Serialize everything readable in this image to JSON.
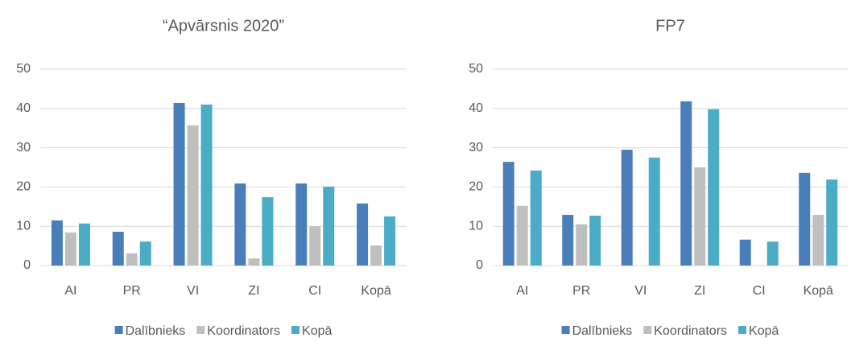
{
  "chart_data": [
    {
      "type": "bar",
      "title": "“Apvārsnis 2020”",
      "categories": [
        "AI",
        "PR",
        "VI",
        "ZI",
        "CI",
        "Kopā"
      ],
      "series": [
        {
          "name": "Dalībnieks",
          "color": "#4a7ebb",
          "values": [
            11.5,
            8.6,
            41.4,
            20.9,
            20.9,
            15.8
          ]
        },
        {
          "name": "Koordinators",
          "color": "#bfbfbf",
          "values": [
            8.4,
            3.1,
            35.7,
            1.8,
            10,
            5.1
          ]
        },
        {
          "name": "Kopā",
          "color": "#4bacc6",
          "values": [
            10.7,
            6.1,
            41,
            17.4,
            20.1,
            12.5
          ]
        }
      ],
      "ylim": [
        0,
        50
      ],
      "yticks": [
        0,
        10,
        20,
        30,
        40,
        50
      ],
      "grid": true,
      "legend": "bottom"
    },
    {
      "type": "bar",
      "title": "FP7",
      "categories": [
        "AI",
        "PR",
        "VI",
        "ZI",
        "CI",
        "Kopā"
      ],
      "series": [
        {
          "name": "Dalībnieks",
          "color": "#4a7ebb",
          "values": [
            26.4,
            12.9,
            29.5,
            41.8,
            6.6,
            23.6
          ]
        },
        {
          "name": "Koordinators",
          "color": "#bfbfbf",
          "values": [
            15.2,
            10.5,
            0,
            25,
            0,
            12.9
          ]
        },
        {
          "name": "Kopā",
          "color": "#4bacc6",
          "values": [
            24.2,
            12.7,
            27.5,
            39.8,
            6.1,
            21.9
          ]
        }
      ],
      "ylim": [
        0,
        50
      ],
      "yticks": [
        0,
        10,
        20,
        30,
        40,
        50
      ],
      "grid": true,
      "legend": "bottom"
    }
  ]
}
